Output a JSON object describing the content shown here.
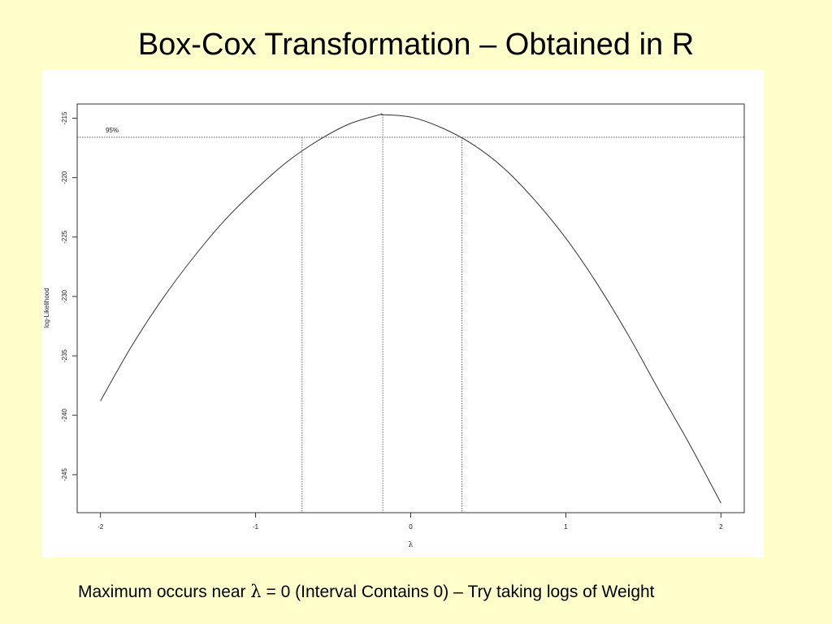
{
  "slide": {
    "title": "Box-Cox Transformation – Obtained in R",
    "caption_before": "Maximum occurs near ",
    "caption_symbol": "λ",
    "caption_after": " = 0 (Interval Contains 0) – Try taking logs of Weight"
  },
  "colors": {
    "background": "#ffffcc",
    "panel": "#ffffff",
    "line": "#333333"
  },
  "chart_data": {
    "type": "line",
    "title": "",
    "xlabel": "λ",
    "ylabel": "log-Likelihood",
    "xlim": [
      -2.15,
      2.15
    ],
    "ylim": [
      -248.2,
      -213.8
    ],
    "xticks": [
      -2,
      -1,
      0,
      1,
      2
    ],
    "xtick_labels": [
      "-2",
      "-1",
      "0",
      "1",
      "2"
    ],
    "yticks": [
      -215,
      -220,
      -225,
      -230,
      -235,
      -240,
      -245
    ],
    "ytick_labels": [
      "-215",
      "-220",
      "-225",
      "-230",
      "-235",
      "-240",
      "-245"
    ],
    "series": [
      {
        "x": [
          -2,
          -1.8,
          -1.6,
          -1.4,
          -1.2,
          -1.0,
          -0.8,
          -0.6,
          -0.4,
          -0.2,
          -0.18,
          0,
          0.2,
          0.4,
          0.6,
          0.8,
          1.0,
          1.2,
          1.4,
          1.6,
          1.8,
          2.0
        ],
        "y": [
          -238.8,
          -234.2,
          -230.2,
          -226.7,
          -223.6,
          -221.0,
          -218.7,
          -216.9,
          -215.5,
          -214.7,
          -214.7,
          -214.9,
          -215.8,
          -217.2,
          -219.2,
          -221.9,
          -225.1,
          -228.9,
          -233.2,
          -237.9,
          -242.5,
          -247.4
        ]
      }
    ],
    "reference": {
      "label": "95%",
      "y": -216.6,
      "lambda_hat": -0.18,
      "ci": [
        -0.7,
        0.33
      ]
    },
    "grid": false,
    "legend": "none"
  }
}
